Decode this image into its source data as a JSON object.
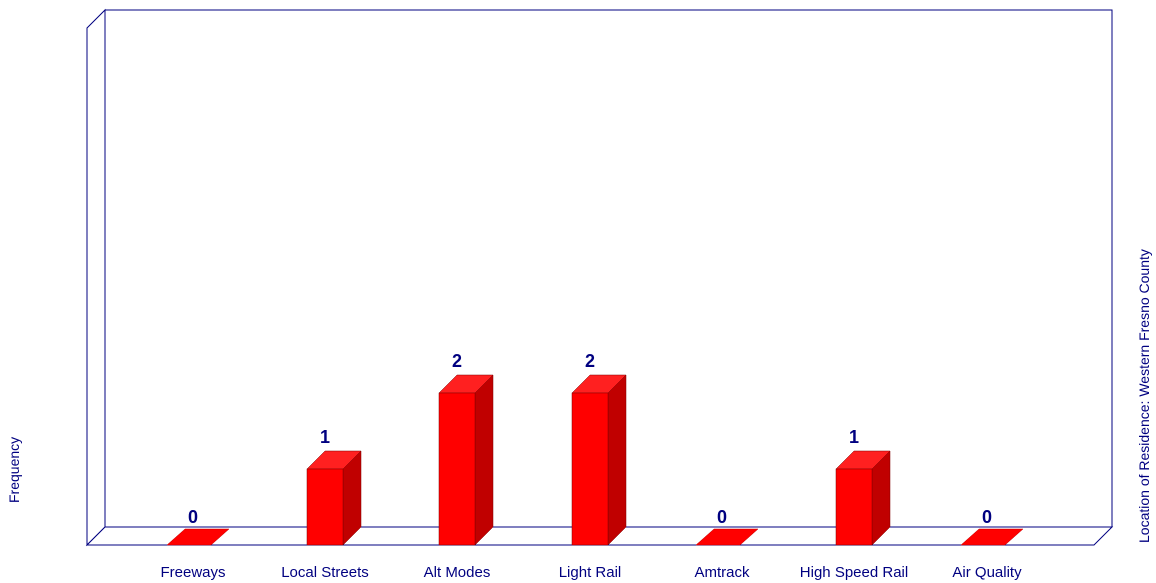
{
  "chart_data": {
    "type": "bar",
    "categories": [
      "Freeways",
      "Local Streets",
      "Alt Modes",
      "Light Rail",
      "Amtrack",
      "High Speed Rail",
      "Air Quality"
    ],
    "values": [
      0,
      1,
      2,
      2,
      0,
      1,
      0
    ],
    "ylabel": "Frequency",
    "legend_label": "Location of Residence: Western Fresno County",
    "ylim": [
      0,
      7
    ],
    "grid": false,
    "style": "3d",
    "colors": {
      "bar_front": "#ff0000",
      "bar_side": "#c00000",
      "bar_top": "#ff2020",
      "axis": "#000080",
      "text": "#000080"
    }
  }
}
